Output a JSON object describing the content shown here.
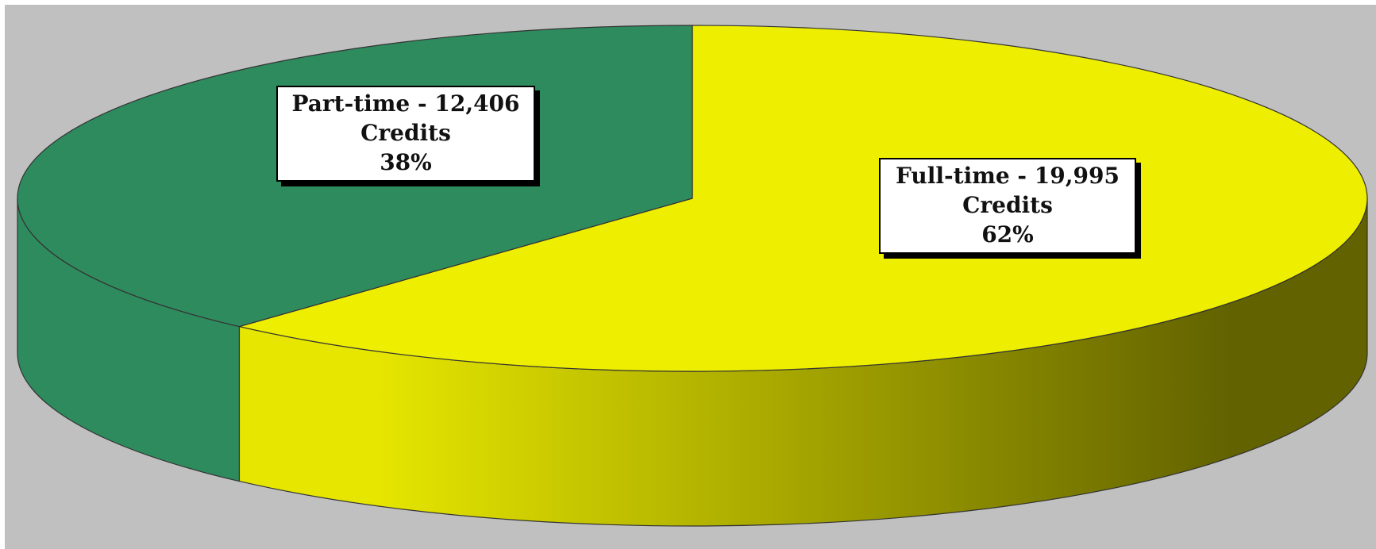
{
  "chart_data": {
    "type": "pie",
    "style": "3d",
    "title": "",
    "categories": [
      "Part-time",
      "Full-time"
    ],
    "values": [
      12406,
      19995
    ],
    "percentages": [
      38,
      62
    ],
    "labels": [
      {
        "lines": [
          "Part-time - 12,406",
          "Credits",
          "38%"
        ]
      },
      {
        "lines": [
          "Full-time - 19,995",
          "Credits",
          "62%"
        ]
      }
    ],
    "legend": "none",
    "colors": {
      "part_time_top": "#2E8B5E",
      "part_time_side": "#2E8B5E",
      "full_time_top": "#EEEE00",
      "full_time_side_light": "#E6E600",
      "full_time_side_dark": "#626200",
      "background": "#C0C0C0",
      "outline": "#333333"
    }
  }
}
